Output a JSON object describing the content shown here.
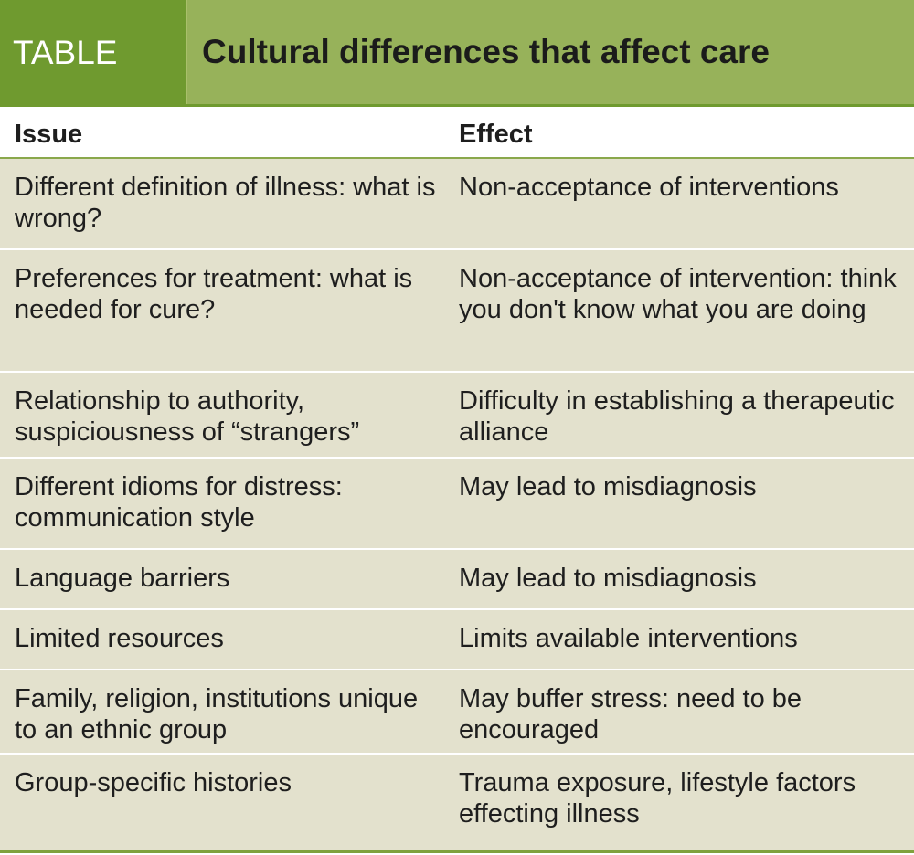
{
  "title": {
    "tag": "TABLE",
    "text": "Cultural differences that affect care"
  },
  "columns": {
    "issue": "Issue",
    "effect": "Effect"
  },
  "rows": [
    {
      "issue": "Different definition of illness: what is wrong?",
      "effect": "Non-acceptance of interventions"
    },
    {
      "issue": "Preferences for treatment: what is needed for cure?",
      "effect": "Non-acceptance of intervention: think you don't know what you are doing"
    },
    {
      "issue": "Relationship to authority, suspiciousness of “strangers”",
      "effect": "Difficulty in establishing a therapeutic alliance"
    },
    {
      "issue": "Different idioms for distress: communication style",
      "effect": "May lead to misdiagnosis"
    },
    {
      "issue": "Language barriers",
      "effect": "May lead to misdiagnosis"
    },
    {
      "issue": "Limited resources",
      "effect": "Limits available interventions"
    },
    {
      "issue": "Family, religion, institutions unique to an ethnic group",
      "effect": "May buffer stress: need to be encouraged"
    },
    {
      "issue": "Group-specific histories",
      "effect": "Trauma exposure, lifestyle factors effecting illness"
    }
  ],
  "colors": {
    "tag_bg": "#6f9a2f",
    "title_bg": "#97b25a",
    "row_bg": "#e3e1cd"
  }
}
